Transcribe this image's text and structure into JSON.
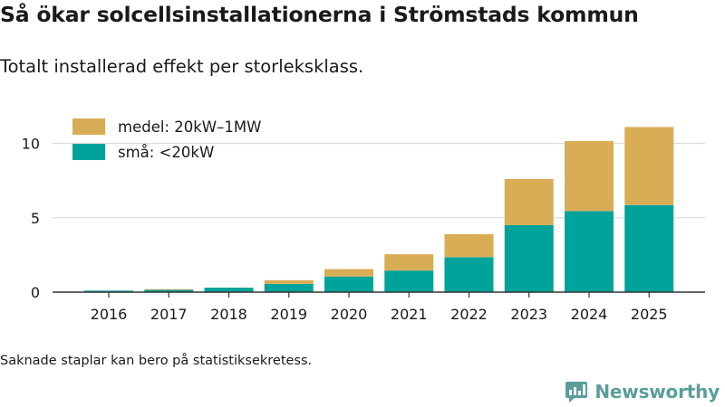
{
  "title": "Så ökar solcellsinstallationerna i Strömstads kommun",
  "subtitle": "Totalt installerad effekt per storleksklass.",
  "footnote": "Saknade staplar kan bero på statistiksekretess.",
  "brand": {
    "name": "Newsworthy",
    "icon": "newsworthy-logo-icon"
  },
  "colors": {
    "small": "#00a39a",
    "medium": "#d9ad56",
    "grid": "#dddddd",
    "axis": "#333333",
    "brand": "#5a9e9a"
  },
  "chart_data": {
    "type": "bar",
    "stacked": true,
    "categories": [
      "2016",
      "2017",
      "2018",
      "2019",
      "2020",
      "2021",
      "2022",
      "2023",
      "2024",
      "2025"
    ],
    "series": [
      {
        "name": "små: <20kW",
        "color": "#00a39a",
        "values": [
          0.1,
          0.15,
          0.3,
          0.55,
          1.05,
          1.45,
          2.35,
          4.5,
          5.45,
          5.85
        ]
      },
      {
        "name": "medel: 20kW–1MW",
        "color": "#d9ad56",
        "values": [
          0.0,
          0.05,
          0.0,
          0.25,
          0.5,
          1.1,
          1.55,
          3.1,
          4.7,
          5.25
        ]
      }
    ],
    "legend": [
      "medel: 20kW–1MW",
      "små: <20kW"
    ],
    "yticks": [
      0,
      5,
      10
    ],
    "ylim": [
      0,
      12.4
    ],
    "xlabel": "",
    "ylabel": "",
    "grid": true,
    "legend_position": "top-left"
  }
}
